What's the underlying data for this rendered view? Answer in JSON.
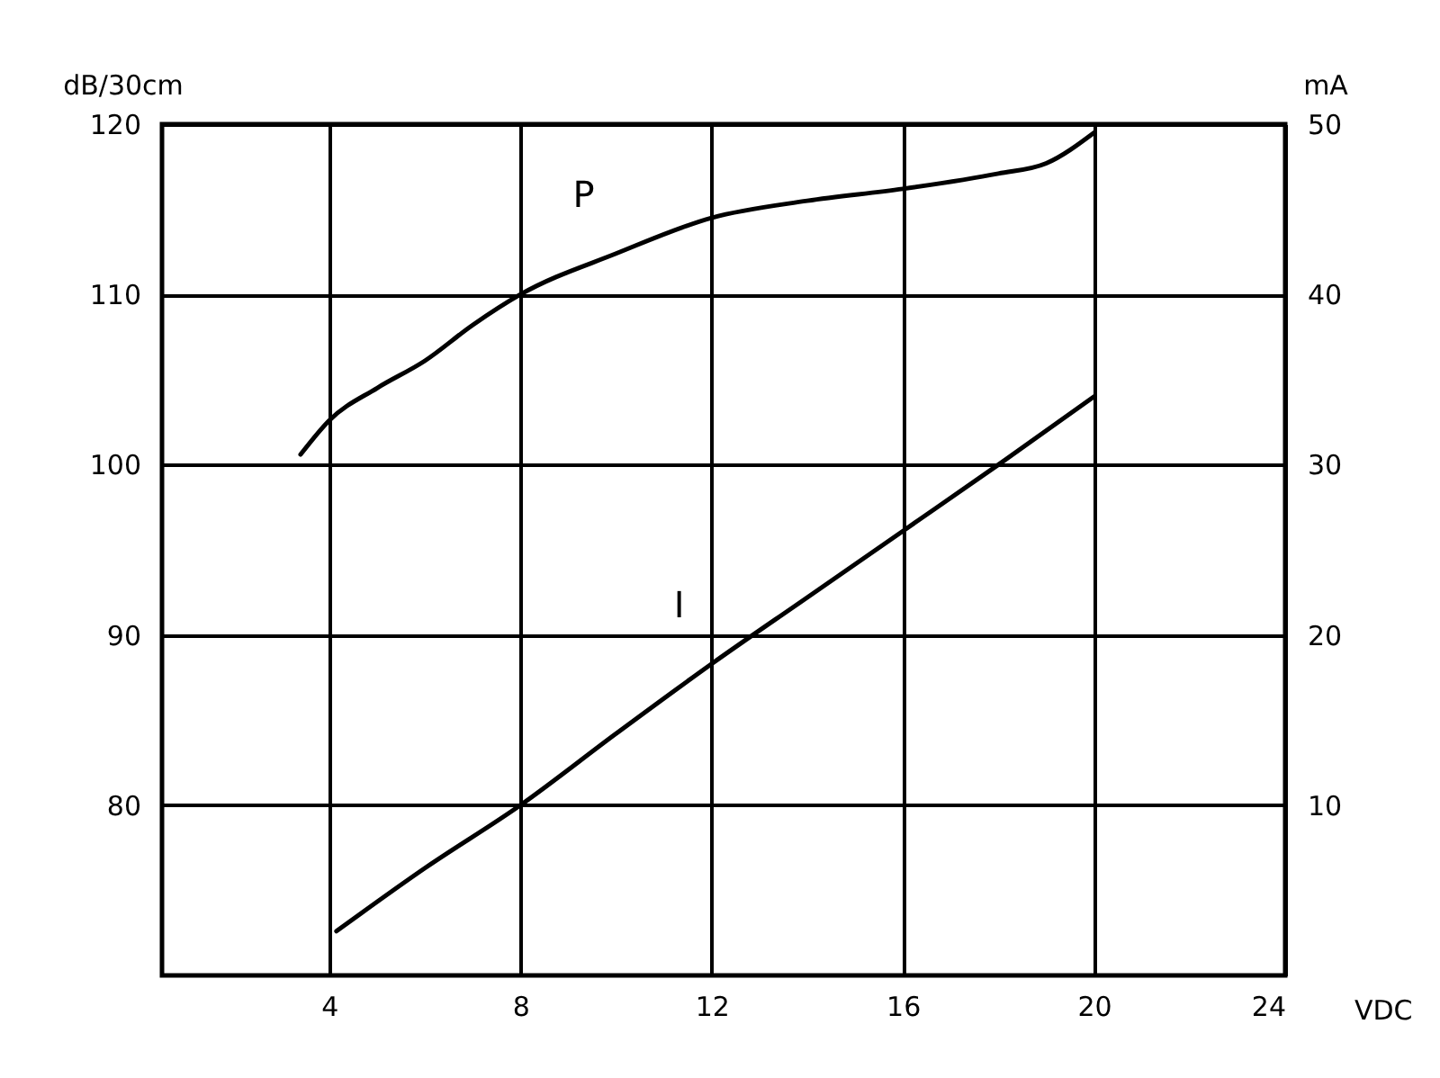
{
  "chart_data": {
    "type": "line",
    "xlabel": "VDC",
    "ylabel": "dB/30cm",
    "y2label": "mA",
    "xlim": [
      0.5,
      24
    ],
    "xticks": [
      4,
      8,
      12,
      16,
      20,
      24
    ],
    "ylim": [
      70,
      120
    ],
    "yticks": [
      80,
      90,
      100,
      110,
      120
    ],
    "y2lim": [
      0,
      50
    ],
    "y2ticks": [
      10,
      20,
      30,
      40,
      50
    ],
    "grid": true,
    "series": [
      {
        "name": "P",
        "color": "#000000",
        "x": [
          3.4,
          4,
          5,
          6,
          7,
          8,
          10,
          12,
          14,
          16,
          18,
          19,
          20
        ],
        "values": [
          100.6,
          102.6,
          104.5,
          106.1,
          108.2,
          110,
          112.4,
          114.5,
          115.5,
          116.2,
          117.1,
          117.7,
          119.5
        ]
      },
      {
        "name": "I",
        "color": "#000000",
        "axis": "y2",
        "x": [
          4.15,
          6,
          8,
          10,
          12,
          14,
          16,
          18,
          20
        ],
        "values": [
          2.6,
          6.3,
          10,
          14.2,
          18.3,
          22.2,
          26.1,
          30,
          34
        ]
      }
    ]
  }
}
